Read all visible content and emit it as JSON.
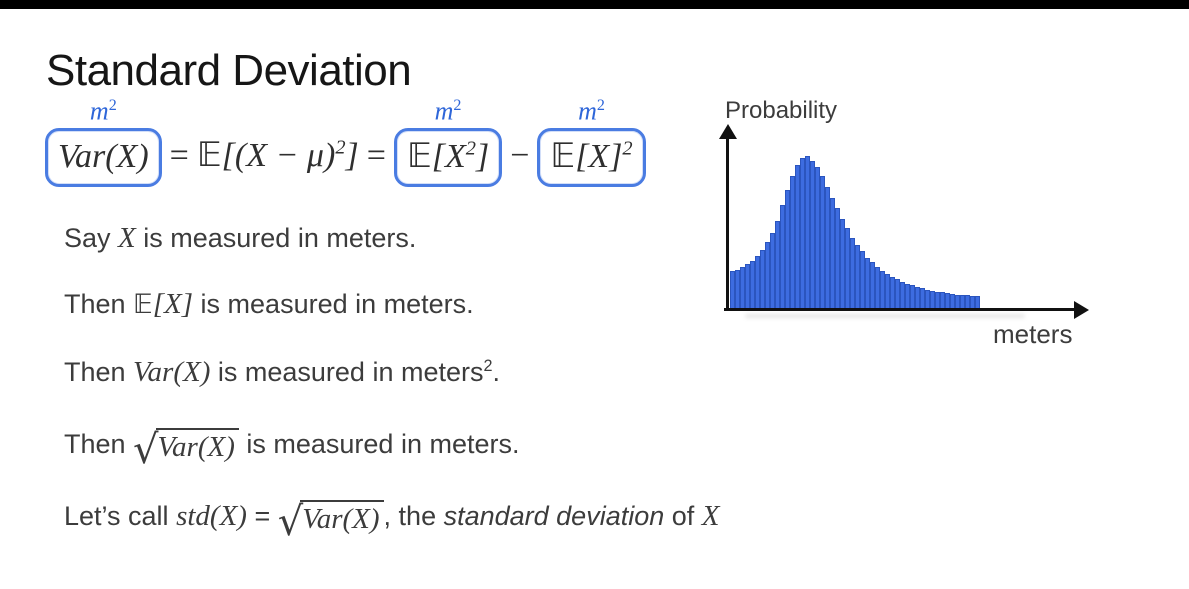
{
  "slide": {
    "title": "Standard Deviation"
  },
  "symbols": {
    "sqrt": "√"
  },
  "formula": {
    "unit_base": "m",
    "unit_exp": "2",
    "lhs": "Var(X)",
    "eq": "=",
    "dsE": "𝔼",
    "mid_open": "[(X − μ)",
    "mid_exp": "2",
    "mid_close": "]",
    "t2_open": "[X",
    "t2_exp": "2",
    "t2_close": "]",
    "minus": "−",
    "t3_body": "[X]",
    "t3_exp": "2"
  },
  "lines": {
    "l1": {
      "pre": "Say ",
      "math": "X",
      "post": " is measured in meters."
    },
    "l2": {
      "pre": "Then ",
      "ds": "𝔼",
      "bracket": "[X]",
      "post": " is measured in meters."
    },
    "l3": {
      "pre": "Then ",
      "math": "Var(X)",
      "post": " is measured in meters",
      "exp": "2",
      "period": "."
    },
    "l4": {
      "pre": "Then ",
      "math": "Var(X)",
      "post": " is measured in meters."
    },
    "l5": {
      "pre": "Let’s call ",
      "math1": "std(X)",
      "eq": " = ",
      "math2": "Var(X)",
      "mid": ", the ",
      "emph": "standard deviation",
      "of": " of ",
      "math3": "X"
    }
  },
  "chart_data": {
    "type": "bar",
    "title": "",
    "ylabel": "Probability",
    "xlabel": "meters",
    "ylim": [
      0,
      1
    ],
    "grid": false,
    "legend": false,
    "values": [
      0.25,
      0.26,
      0.28,
      0.3,
      0.32,
      0.35,
      0.39,
      0.44,
      0.5,
      0.58,
      0.68,
      0.78,
      0.87,
      0.94,
      0.99,
      1.0,
      0.97,
      0.93,
      0.87,
      0.8,
      0.73,
      0.66,
      0.59,
      0.53,
      0.47,
      0.42,
      0.38,
      0.34,
      0.31,
      0.28,
      0.255,
      0.235,
      0.215,
      0.2,
      0.185,
      0.17,
      0.16,
      0.15,
      0.14,
      0.13,
      0.125,
      0.12,
      0.115,
      0.11,
      0.105,
      0.1,
      0.098,
      0.095,
      0.093,
      0.09
    ],
    "bar_color": "#3d6ce0",
    "bar_edge_color": "#2b55be",
    "axis_color": "#111111"
  },
  "colors": {
    "annotation_box_blue": "#4a7ce2",
    "annotation_label_blue": "#2e66d9",
    "body_text": "#3c3c3c",
    "title_text": "#161616"
  }
}
